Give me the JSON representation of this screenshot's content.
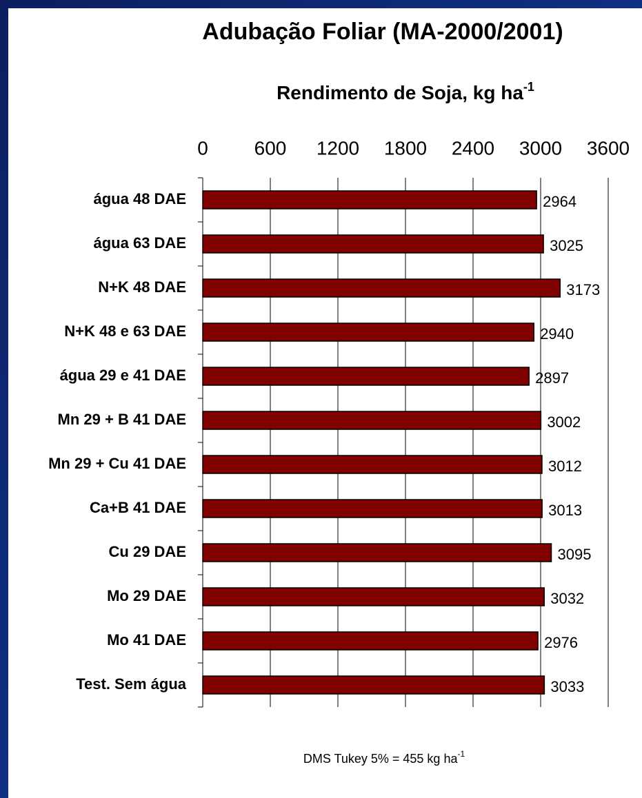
{
  "chart_data": {
    "type": "bar",
    "orientation": "horizontal",
    "title": "Adubação Foliar (MA-2000/2001)",
    "x_label": {
      "text": "Rendimento de Soja, kg ha",
      "sup": "-1"
    },
    "note": {
      "text": "DMS Tukey 5% = 455 kg ha",
      "sup": "-1"
    },
    "categories": [
      "água 48 DAE",
      "água 63 DAE",
      "N+K 48 DAE",
      "N+K 48 e 63 DAE",
      "água 29 e 41 DAE",
      "Mn 29 + B 41 DAE",
      "Mn 29 + Cu 41 DAE",
      "Ca+B 41 DAE",
      "Cu 29 DAE",
      "Mo 29 DAE",
      "Mo 41 DAE",
      "Test. Sem água"
    ],
    "values": [
      2964,
      3025,
      3173,
      2940,
      2897,
      3002,
      3012,
      3013,
      3095,
      3032,
      2976,
      3033
    ],
    "color": "#800000",
    "xlim": [
      0,
      3600
    ],
    "xticks": [
      0,
      600,
      1200,
      1800,
      2400,
      3000,
      3600
    ],
    "grid": true
  }
}
